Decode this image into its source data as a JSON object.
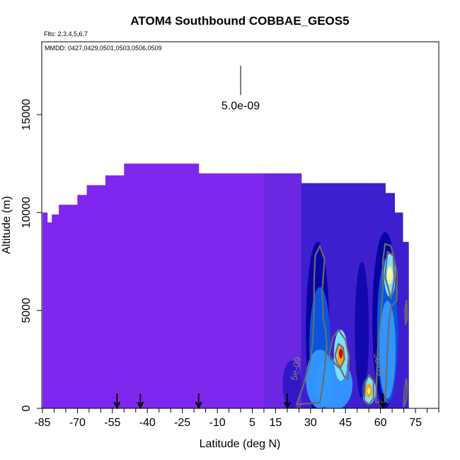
{
  "chart_data": {
    "type": "heatmap",
    "title": "ATOM4 Southbound COBBAE_GEOS5",
    "flights_note": "Flts: 2,3,4,5,6,7",
    "dates_note": "MMDD: 0427,0429,0501,0503,0506,0509",
    "xlabel": "Latitude (deg N)",
    "ylabel": "Altitude (m)",
    "xlim": [
      -85,
      85
    ],
    "ylim": [
      0,
      18000
    ],
    "x_ticks": [
      -85,
      -70,
      -55,
      -40,
      -25,
      -10,
      5,
      15,
      30,
      45,
      60,
      75
    ],
    "x_tick_labels": [
      "-85",
      "-70",
      "-55",
      "-40",
      "-25",
      "-10",
      "5",
      "15",
      "30",
      "45",
      "60",
      "75"
    ],
    "x_minor_ticks": [
      -80,
      -75,
      -65,
      -60,
      -50,
      -45,
      -35,
      -30,
      -20,
      -15,
      -5,
      0,
      10,
      20,
      25,
      35,
      40,
      50,
      55,
      65,
      70,
      80,
      85
    ],
    "y_ticks": [
      0,
      5000,
      10000,
      15000
    ],
    "y_tick_labels": [
      "0",
      "5000",
      "10000",
      "15000"
    ],
    "grid": false,
    "scale_bar": {
      "label": "5.0e-09",
      "lat": 0,
      "alt_top": 17500,
      "alt_bottom": 16000
    },
    "flight_arrows_lat": [
      -53,
      -43,
      -18,
      20,
      61
    ],
    "contour_levels": [
      5e-09
    ],
    "contour_labels": [
      {
        "text": "5e-09",
        "lat": 25,
        "alt": 2000,
        "rotate": -80
      },
      {
        "text": "5e-09",
        "lat": 58,
        "alt": 2200,
        "rotate": 80
      }
    ],
    "colorscale": {
      "low": "#7f27ee",
      "stops": [
        "#7f27ee",
        "#6d29e8",
        "#4a1fd3",
        "#1d0fb9",
        "#00009a",
        "#0a5ee5",
        "#3399ff",
        "#7fdfff",
        "#ffff99",
        "#ffa500",
        "#cc0000"
      ]
    },
    "columns": [
      {
        "lat": -84,
        "alt_top": 10000
      },
      {
        "lat": -82,
        "alt_top": 9500
      },
      {
        "lat": -80,
        "alt_top": 9900
      },
      {
        "lat": -76,
        "alt_top": 10400
      },
      {
        "lat": -72,
        "alt_top": 10400
      },
      {
        "lat": -68,
        "alt_top": 10900
      },
      {
        "lat": -64,
        "alt_top": 11400
      },
      {
        "lat": -60,
        "alt_top": 11400
      },
      {
        "lat": -56,
        "alt_top": 11900
      },
      {
        "lat": -52,
        "alt_top": 11900
      },
      {
        "lat": -48,
        "alt_top": 12500
      },
      {
        "lat": -44,
        "alt_top": 12500
      },
      {
        "lat": -40,
        "alt_top": 12500
      },
      {
        "lat": -36,
        "alt_top": 12500
      },
      {
        "lat": -32,
        "alt_top": 12500
      },
      {
        "lat": -28,
        "alt_top": 12500
      },
      {
        "lat": -24,
        "alt_top": 12500
      },
      {
        "lat": -20,
        "alt_top": 12500
      },
      {
        "lat": -16,
        "alt_top": 12000
      },
      {
        "lat": -12,
        "alt_top": 12000
      },
      {
        "lat": -8,
        "alt_top": 12000
      },
      {
        "lat": -4,
        "alt_top": 12000
      },
      {
        "lat": 0,
        "alt_top": 12000
      },
      {
        "lat": 4,
        "alt_top": 12000
      },
      {
        "lat": 8,
        "alt_top": 12000
      },
      {
        "lat": 12,
        "alt_top": 12000
      },
      {
        "lat": 16,
        "alt_top": 12000
      },
      {
        "lat": 20,
        "alt_top": 12000
      },
      {
        "lat": 24,
        "alt_top": 12000
      },
      {
        "lat": 28,
        "alt_top": 11500
      },
      {
        "lat": 32,
        "alt_top": 11500
      },
      {
        "lat": 36,
        "alt_top": 11500
      },
      {
        "lat": 40,
        "alt_top": 11500
      },
      {
        "lat": 44,
        "alt_top": 11500
      },
      {
        "lat": 48,
        "alt_top": 11500
      },
      {
        "lat": 52,
        "alt_top": 11500
      },
      {
        "lat": 56,
        "alt_top": 11500
      },
      {
        "lat": 60,
        "alt_top": 11500
      },
      {
        "lat": 64,
        "alt_top": 11000
      },
      {
        "lat": 68,
        "alt_top": 10000
      },
      {
        "lat": 71,
        "alt_top": 8500
      }
    ],
    "blobs": [
      {
        "lat": 33,
        "alt": 4000,
        "w": 10,
        "h": 9000,
        "color": "#00009a",
        "opacity": 0.85
      },
      {
        "lat": 34,
        "alt": 3200,
        "w": 9,
        "h": 6000,
        "color": "#0a5ee5",
        "opacity": 0.9
      },
      {
        "lat": 34,
        "alt": 1500,
        "w": 12,
        "h": 3000,
        "color": "#3399ff",
        "opacity": 0.95
      },
      {
        "lat": 40,
        "alt": 1200,
        "w": 16,
        "h": 2600,
        "color": "#3399ff",
        "opacity": 0.95
      },
      {
        "lat": 43,
        "alt": 2700,
        "w": 6,
        "h": 2600,
        "color": "#7fdfff",
        "opacity": 1
      },
      {
        "lat": 62,
        "alt": 4500,
        "w": 11,
        "h": 9000,
        "color": "#00009a",
        "opacity": 0.9
      },
      {
        "lat": 63,
        "alt": 4000,
        "w": 9,
        "h": 7500,
        "color": "#0a5ee5",
        "opacity": 0.9
      },
      {
        "lat": 63,
        "alt": 3000,
        "w": 7,
        "h": 5000,
        "color": "#3399ff",
        "opacity": 0.95
      },
      {
        "lat": 64,
        "alt": 6800,
        "w": 5,
        "h": 2200,
        "color": "#7fdfff",
        "opacity": 1
      },
      {
        "lat": 55,
        "alt": 900,
        "w": 6,
        "h": 1400,
        "color": "#7fdfff",
        "opacity": 1
      },
      {
        "lat": 52,
        "alt": 4000,
        "w": 6,
        "h": 7000,
        "color": "#00009a",
        "opacity": 0.7
      },
      {
        "lat": 22,
        "alt": 1200,
        "w": 8,
        "h": 2500,
        "color": "#1d0fb9",
        "opacity": 0.7
      }
    ],
    "hotspots": [
      {
        "lat": 64,
        "alt": 6800,
        "w": 2.4,
        "h": 900,
        "color": "#ffff99"
      },
      {
        "lat": 43,
        "alt": 2700,
        "w": 3,
        "h": 1000,
        "color": "#ffa500"
      },
      {
        "lat": 43,
        "alt": 2800,
        "w": 1.6,
        "h": 500,
        "color": "#cc0000"
      },
      {
        "lat": 55,
        "alt": 900,
        "w": 2.6,
        "h": 700,
        "color": "#ffa500"
      },
      {
        "lat": 55,
        "alt": 900,
        "w": 1.2,
        "h": 300,
        "color": "#ffff99"
      }
    ],
    "contours": [
      [
        [
          24,
          200
        ],
        [
          27,
          1200
        ],
        [
          30,
          2500
        ],
        [
          31,
          3500
        ],
        [
          31.5,
          5000
        ],
        [
          31.5,
          6500
        ],
        [
          32,
          7800
        ],
        [
          34,
          8300
        ],
        [
          36,
          7600
        ],
        [
          35,
          6000
        ],
        [
          35.5,
          4500
        ],
        [
          36.5,
          4000
        ],
        [
          37,
          3200
        ],
        [
          36,
          2000
        ],
        [
          35,
          1000
        ],
        [
          34,
          300
        ]
      ],
      [
        [
          38,
          2700
        ],
        [
          39.5,
          3600
        ],
        [
          42,
          4000
        ],
        [
          45,
          3500
        ],
        [
          46.5,
          2600
        ],
        [
          46,
          1500
        ],
        [
          44.5,
          1600
        ],
        [
          43,
          2000
        ],
        [
          41,
          2200
        ]
      ],
      [
        [
          40.5,
          2700
        ],
        [
          42,
          3300
        ],
        [
          44,
          3100
        ],
        [
          44.5,
          2500
        ],
        [
          43,
          2100
        ],
        [
          41.5,
          2300
        ]
      ],
      [
        [
          53,
          400
        ],
        [
          53.5,
          1300
        ],
        [
          55,
          1700
        ],
        [
          57,
          1400
        ],
        [
          57,
          500
        ],
        [
          55,
          200
        ]
      ],
      [
        [
          58,
          300
        ],
        [
          58.5,
          2000
        ],
        [
          59,
          3500
        ],
        [
          60,
          4500
        ],
        [
          61,
          6000
        ],
        [
          61,
          7500
        ],
        [
          62,
          8400
        ],
        [
          64.5,
          8300
        ],
        [
          67,
          7000
        ],
        [
          67,
          5500
        ],
        [
          64.5,
          5200
        ],
        [
          63.5,
          4200
        ],
        [
          63,
          3000
        ],
        [
          62.5,
          1500
        ],
        [
          62,
          300
        ]
      ],
      [
        [
          62,
          6700
        ],
        [
          63,
          8000
        ],
        [
          65.5,
          7800
        ],
        [
          66,
          6600
        ],
        [
          64.5,
          5600
        ]
      ],
      [
        [
          70.5,
          5000
        ],
        [
          71.2,
          5500
        ],
        [
          71.5,
          4600
        ],
        [
          70.8,
          4300
        ]
      ],
      [
        [
          70,
          100
        ],
        [
          71,
          400
        ],
        [
          71.5,
          1200
        ],
        [
          71,
          1500
        ],
        [
          70.2,
          800
        ]
      ]
    ]
  }
}
